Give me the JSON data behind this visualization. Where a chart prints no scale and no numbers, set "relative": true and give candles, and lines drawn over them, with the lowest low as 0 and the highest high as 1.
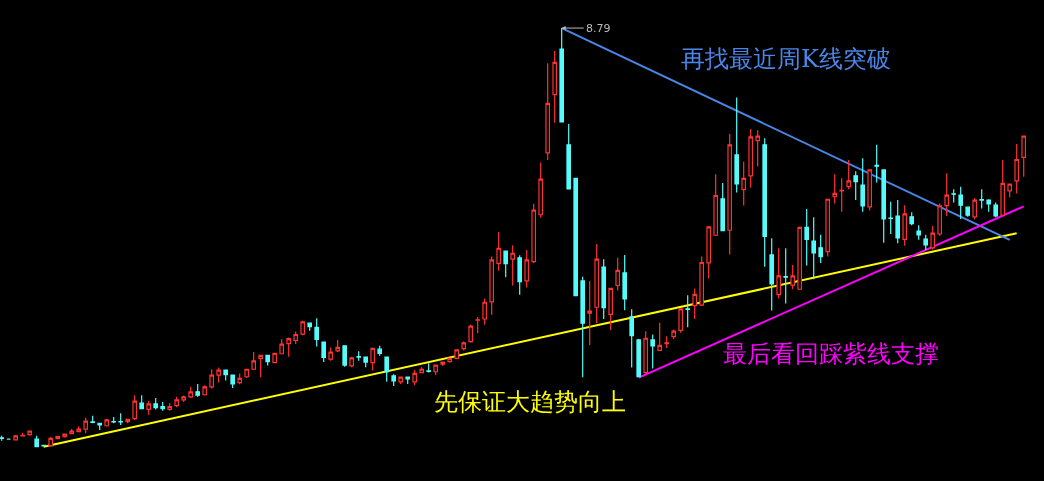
{
  "chart_data": {
    "type": "candlestick",
    "relative": true,
    "legend": false,
    "categories": [
      null,
      null,
      null,
      null,
      null,
      null,
      null,
      null,
      null,
      null,
      null,
      null,
      null,
      null,
      null,
      null,
      null,
      null,
      null,
      null,
      null,
      null,
      null,
      null,
      null,
      null,
      null,
      null,
      null,
      null,
      null,
      null,
      null,
      null,
      null,
      null,
      null,
      null,
      null,
      null,
      null,
      null,
      null,
      null,
      null,
      null,
      null,
      null,
      null,
      null,
      null,
      null,
      null,
      null,
      null,
      null,
      null,
      null,
      null,
      null,
      null,
      null,
      null,
      null,
      null,
      null,
      null,
      null,
      null,
      null,
      null,
      null,
      null,
      null,
      null,
      null,
      null,
      null,
      null,
      null,
      null,
      null,
      null,
      null,
      null,
      null,
      null,
      null,
      null,
      null,
      null,
      null,
      null,
      null,
      null,
      null,
      null,
      null,
      null,
      null,
      null,
      null,
      null,
      null,
      null,
      null,
      null,
      null,
      null,
      null,
      null,
      null,
      null,
      null,
      null,
      null,
      null,
      null,
      null,
      null,
      null,
      null,
      null,
      null,
      null,
      null,
      null,
      null,
      null,
      null,
      null,
      null,
      null,
      null,
      null,
      null,
      null,
      null,
      null,
      null,
      null,
      null,
      null,
      null,
      null,
      null,
      null
    ],
    "colors": [
      "#54fcfc",
      "#54fcfc",
      "#ff3232",
      "#ff3232",
      "#ff3232",
      "#54fcfc",
      "#54fcfc",
      "#ff3232",
      "#ff3232",
      "#ff3232",
      "#ff3232",
      "#ff3232",
      "#ff3232",
      "#54fcfc",
      "#54fcfc",
      "#ff3232",
      "#54fcfc",
      "#54fcfc",
      "#ff3232",
      "#ff3232",
      "#54fcfc",
      "#ff3232",
      "#54fcfc",
      "#54fcfc",
      "#ff3232",
      "#ff3232",
      "#ff3232",
      "#ff3232",
      "#54fcfc",
      "#ff3232",
      "#ff3232",
      "#ff3232",
      "#54fcfc",
      "#54fcfc",
      "#ff3232",
      "#ff3232",
      "#ff3232",
      "#ff3232",
      "#54fcfc",
      "#ff3232",
      "#ff3232",
      "#ff3232",
      "#ff3232",
      "#ff3232",
      "#54fcfc",
      "#54fcfc",
      "#54fcfc",
      "#ff3232",
      "#ff3232",
      "#54fcfc",
      "#ff3232",
      "#54fcfc",
      "#54fcfc",
      "#ff3232",
      "#54fcfc",
      "#54fcfc",
      "#54fcfc",
      "#ff3232",
      "#54fcfc",
      "#ff3232",
      "#ff3232",
      "#54fcfc",
      "#ff3232",
      "#ff3232",
      "#ff3232",
      "#ff3232",
      "#ff3232",
      "#ff3232",
      "#ff3232",
      "#ff3232",
      "#ff3232",
      "#ff3232",
      "#54fcfc",
      "#ff3232",
      "#54fcfc",
      "#ff3232",
      "#ff3232",
      "#ff3232",
      "#ff3232",
      "#ff3232",
      "#54fcfc",
      "#54fcfc",
      "#54fcfc",
      "#54fcfc",
      "#ff3232",
      "#ff3232",
      "#54fcfc",
      "#ff3232",
      "#ff3232",
      "#54fcfc",
      "#54fcfc",
      "#54fcfc",
      "#ff3232",
      "#54fcfc",
      "#ff3232",
      "#ff3232",
      "#ff3232",
      "#ff3232",
      "#54fcfc",
      "#ff3232",
      "#ff3232",
      "#ff3232",
      "#ff3232",
      "#54fcfc",
      "#ff3232",
      "#54fcfc",
      "#ff3232",
      "#ff3232",
      "#ff3232",
      "#54fcfc",
      "#54fcfc",
      "#ff3232",
      "#54fcfc",
      "#ff3232",
      "#ff3232",
      "#54fcfc",
      "#54fcfc",
      "#54fcfc",
      "#ff3232",
      "#ff3232",
      "#ff3232",
      "#ff3232",
      "#54fcfc",
      "#54fcfc",
      "#ff3232",
      "#54fcfc",
      "#54fcfc",
      "#54fcfc",
      "#54fcfc",
      "#ff3232",
      "#54fcfc",
      "#54fcfc",
      "#54fcfc",
      "#ff3232",
      "#ff3232",
      "#ff3232",
      "#54fcfc",
      "#54fcfc",
      "#54fcfc",
      "#ff3232",
      "#54fcfc",
      "#54fcfc",
      "#54fcfc",
      "#ff3232",
      "#ff3232",
      "#ff3232",
      "#ff3232"
    ],
    "ohlc": [
      [
        0.021,
        0.026,
        0.014,
        0.02
      ],
      [
        0.018,
        0.018,
        0.017,
        0.018
      ],
      [
        0.016,
        0.028,
        0.015,
        0.026
      ],
      [
        0.026,
        0.033,
        0.025,
        0.027
      ],
      [
        0.029,
        0.038,
        0.026,
        0.037
      ],
      [
        0.018,
        0.026,
        0,
        0
      ],
      [
        0.003,
        0.003,
        0,
        0.002
      ],
      [
        0.002,
        0.023,
        0.001,
        0.02
      ],
      [
        0.019,
        0.024,
        0.018,
        0.024
      ],
      [
        0.024,
        0.031,
        0.022,
        0.03
      ],
      [
        0.031,
        0.042,
        0.03,
        0.037
      ],
      [
        0.036,
        0.049,
        0.035,
        0.042
      ],
      [
        0.042,
        0.069,
        0.032,
        0.061
      ],
      [
        0.059,
        0.074,
        0.056,
        0.058
      ],
      [
        0.056,
        0.057,
        0.04,
        0.052
      ],
      [
        0.05,
        0.066,
        0.048,
        0.064
      ],
      [
        0.06,
        0.071,
        0.056,
        0.059
      ],
      [
        0.06,
        0.08,
        0.052,
        0.059
      ],
      [
        0.06,
        0.066,
        0.056,
        0.065
      ],
      [
        0.067,
        0.123,
        0.064,
        0.109
      ],
      [
        0.104,
        0.123,
        0.09,
        0.091
      ],
      [
        0.089,
        0.109,
        0.076,
        0.102
      ],
      [
        0.102,
        0.116,
        0.089,
        0.093
      ],
      [
        0.096,
        0.107,
        0.086,
        0.091
      ],
      [
        0.089,
        0.104,
        0.086,
        0.096
      ],
      [
        0.098,
        0.119,
        0.094,
        0.112
      ],
      [
        0.112,
        0.122,
        0.107,
        0.119
      ],
      [
        0.119,
        0.143,
        0.116,
        0.131
      ],
      [
        0.131,
        0.15,
        0.119,
        0.123
      ],
      [
        0.124,
        0.147,
        0.122,
        0.143
      ],
      [
        0.143,
        0.185,
        0.139,
        0.171
      ],
      [
        0.171,
        0.189,
        0.153,
        0.183
      ],
      [
        0.183,
        0.184,
        0.158,
        0.172
      ],
      [
        0.171,
        0.172,
        0.14,
        0.15
      ],
      [
        0.153,
        0.175,
        0.149,
        0.163
      ],
      [
        0.167,
        0.186,
        0.164,
        0.185
      ],
      [
        0.185,
        0.226,
        0.183,
        0.205
      ],
      [
        0.211,
        0.219,
        0.166,
        0.218
      ],
      [
        0.218,
        0.219,
        0.194,
        0.203
      ],
      [
        0.201,
        0.224,
        0.199,
        0.223
      ],
      [
        0.222,
        0.257,
        0.221,
        0.245
      ],
      [
        0.246,
        0.261,
        0.215,
        0.258
      ],
      [
        0.254,
        0.275,
        0.245,
        0.268
      ],
      [
        0.269,
        0.301,
        0.266,
        0.298
      ],
      [
        0.295,
        0.296,
        0.277,
        0.287
      ],
      [
        0.285,
        0.307,
        0.239,
        0.256
      ],
      [
        0.25,
        0.251,
        0.202,
        0.213
      ],
      [
        0.209,
        0.237,
        0.205,
        0.226
      ],
      [
        0.229,
        0.255,
        0.226,
        0.237
      ],
      [
        0.241,
        0.242,
        0.191,
        0.195
      ],
      [
        0.193,
        0.215,
        0.19,
        0.212
      ],
      [
        0.215,
        0.228,
        0.205,
        0.214
      ],
      [
        0.214,
        0.215,
        0.19,
        0.202
      ],
      [
        0.201,
        0.236,
        0.182,
        0.235
      ],
      [
        0.233,
        0.241,
        0.217,
        0.223
      ],
      [
        0.214,
        0.215,
        0.155,
        0.179
      ],
      [
        0.169,
        0.173,
        0.145,
        0.157
      ],
      [
        0.155,
        0.167,
        0.15,
        0.166
      ],
      [
        0.166,
        0.167,
        0.15,
        0.162
      ],
      [
        0.155,
        0.183,
        0.147,
        0.175
      ],
      [
        0.177,
        0.19,
        0.176,
        0.185
      ],
      [
        0.181,
        0.199,
        0.177,
        0.18
      ],
      [
        0.179,
        0.196,
        0.171,
        0.195
      ],
      [
        0.197,
        0.203,
        0.193,
        0.202
      ],
      [
        0.203,
        0.212,
        0.201,
        0.211
      ],
      [
        0.211,
        0.232,
        0.209,
        0.231
      ],
      [
        0.234,
        0.251,
        0.23,
        0.248
      ],
      [
        0.251,
        0.291,
        0.248,
        0.288
      ],
      [
        0.302,
        0.31,
        0.271,
        0.303
      ],
      [
        0.305,
        0.354,
        0.291,
        0.345
      ],
      [
        0.346,
        0.454,
        0.315,
        0.446
      ],
      [
        0.438,
        0.513,
        0.42,
        0.474
      ],
      [
        0.467,
        0.468,
        0.405,
        0.437
      ],
      [
        0.448,
        0.481,
        0.385,
        0.462
      ],
      [
        0.451,
        0.457,
        0.363,
        0.394
      ],
      [
        0.396,
        0.47,
        0.38,
        0.446
      ],
      [
        0.442,
        0.58,
        0.439,
        0.565
      ],
      [
        0.554,
        0.679,
        0.547,
        0.639
      ],
      [
        0.702,
        0.916,
        0.685,
        0.82
      ],
      [
        0.841,
        0.945,
        0.774,
        0.918
      ],
      [
        0.95,
        1,
        0.776,
        0.776
      ],
      [
        0.721,
        0.771,
        0.616,
        0.616
      ],
      [
        0.641,
        0.642,
        0.36,
        0.361
      ],
      [
        0.396,
        0.406,
        0.166,
        0.295
      ],
      [
        0.319,
        0.396,
        0.243,
        0.324
      ],
      [
        0.333,
        0.484,
        0.295,
        0.448
      ],
      [
        0.429,
        0.448,
        0.305,
        0.332
      ],
      [
        0.316,
        0.379,
        0.279,
        0.378
      ],
      [
        0.385,
        0.451,
        0.373,
        0.421
      ],
      [
        0.415,
        0.458,
        0.326,
        0.353
      ],
      [
        0.31,
        0.328,
        0.189,
        0.265
      ],
      [
        0.255,
        0.257,
        0.166,
        0.167
      ],
      [
        0.177,
        0.276,
        0.174,
        0.259
      ],
      [
        0.255,
        0.268,
        0.187,
        0.241
      ],
      [
        0.23,
        0.296,
        0.229,
        0.242
      ],
      [
        0.246,
        0.264,
        0.236,
        0.248
      ],
      [
        0.263,
        0.28,
        0.257,
        0.276
      ],
      [
        0.278,
        0.33,
        0.272,
        0.329
      ],
      [
        0.329,
        0.362,
        0.285,
        0.328
      ],
      [
        0.337,
        0.378,
        0.305,
        0.364
      ],
      [
        0.338,
        0.454,
        0.336,
        0.44
      ],
      [
        0.439,
        0.527,
        0.402,
        0.525
      ],
      [
        0.505,
        0.651,
        0.503,
        0.6
      ],
      [
        0.592,
        0.63,
        0.516,
        0.516
      ],
      [
        0.517,
        0.747,
        0.459,
        0.721
      ],
      [
        0.697,
        0.834,
        0.607,
        0.628
      ],
      [
        0.614,
        0.681,
        0.576,
        0.641
      ],
      [
        0.647,
        0.759,
        0.619,
        0.74
      ],
      [
        0.731,
        0.756,
        0.669,
        0.742
      ],
      [
        0.721,
        0.737,
        0.43,
        0.502
      ],
      [
        0.458,
        0.498,
        0.325,
        0.389
      ],
      [
        0.363,
        0.474,
        0.354,
        0.408
      ],
      [
        0.406,
        0.474,
        0.342,
        0.405
      ],
      [
        0.386,
        0.434,
        0.376,
        0.408
      ],
      [
        0.376,
        0.525,
        0.375,
        0.524
      ],
      [
        0.524,
        0.568,
        0.433,
        0.495
      ],
      [
        0.491,
        0.548,
        0.4,
        0.463
      ],
      [
        0.475,
        0.506,
        0.439,
        0.454
      ],
      [
        0.466,
        0.592,
        0.454,
        0.591
      ],
      [
        0.597,
        0.651,
        0.581,
        0.605
      ],
      [
        0.611,
        0.641,
        0.561,
        0.612
      ],
      [
        0.621,
        0.685,
        0.615,
        0.635
      ],
      [
        0.647,
        0.658,
        0.589,
        0.633
      ],
      [
        0.625,
        0.689,
        0.561,
        0.575
      ],
      [
        0.573,
        0.662,
        0.564,
        0.661
      ],
      [
        0.672,
        0.721,
        0.631,
        0.67
      ],
      [
        0.661,
        0.662,
        0.487,
        0.544
      ],
      [
        0.546,
        0.585,
        0.508,
        0.545
      ],
      [
        0.551,
        0.589,
        0.486,
        0.499
      ],
      [
        0.495,
        0.577,
        0.48,
        0.556
      ],
      [
        0.549,
        0.56,
        0.529,
        0.533
      ],
      [
        0.515,
        0.529,
        0.494,
        0.506
      ],
      [
        0.496,
        0.506,
        0.47,
        0.482
      ],
      [
        0.475,
        0.527,
        0.471,
        0.51
      ],
      [
        0.508,
        0.581,
        0.504,
        0.575
      ],
      [
        0.576,
        0.653,
        0.551,
        0.601
      ],
      [
        0.604,
        0.615,
        0.583,
        0.603
      ],
      [
        0.601,
        0.621,
        0.544,
        0.577
      ],
      [
        0.572,
        0.573,
        0.549,
        0.553
      ],
      [
        0.549,
        0.594,
        0.543,
        0.589
      ],
      [
        0.59,
        0.615,
        0.569,
        0.589
      ],
      [
        0.589,
        0.591,
        0.561,
        0.58
      ],
      [
        0.577,
        0.583,
        0.548,
        0.551
      ],
      [
        0.553,
        0.685,
        0.552,
        0.629
      ],
      [
        0.611,
        0.628,
        0.596,
        0.627
      ],
      [
        0.635,
        0.723,
        0.605,
        0.686
      ],
      [
        0.691,
        0.743,
        0.645,
        0.742
      ]
    ],
    "series": [
      {
        "type": "line",
        "name": "先保证大趋势向上",
        "color": "#ffff00",
        "values": [
          null,
          null,
          null,
          null,
          null,
          null,
          0,
          null,
          null,
          null,
          null,
          null,
          null,
          null,
          null,
          null,
          null,
          null,
          null,
          null,
          null,
          null,
          null,
          null,
          null,
          null,
          null,
          null,
          null,
          null,
          null,
          null,
          null,
          null,
          null,
          null,
          null,
          null,
          null,
          null,
          null,
          null,
          null,
          null,
          null,
          null,
          null,
          null,
          null,
          null,
          null,
          null,
          null,
          null,
          null,
          null,
          null,
          null,
          null,
          null,
          null,
          null,
          null,
          null,
          null,
          null,
          null,
          null,
          null,
          null,
          null,
          null,
          null,
          null,
          null,
          null,
          null,
          null,
          null,
          null,
          null,
          null,
          null,
          null,
          null,
          null,
          null,
          null,
          null,
          null,
          null,
          null,
          null,
          null,
          null,
          null,
          null,
          null,
          null,
          null,
          null,
          null,
          null,
          null,
          null,
          null,
          null,
          null,
          null,
          null,
          null,
          null,
          null,
          null,
          null,
          null,
          null,
          null,
          null,
          null,
          null,
          null,
          null,
          null,
          null,
          null,
          null,
          null,
          null,
          null,
          null,
          null,
          null,
          null,
          null,
          null,
          null,
          null,
          null,
          null,
          null,
          null,
          null,
          null,
          null,
          0.51,
          null
        ]
      },
      {
        "type": "line",
        "name": "再找最近周K线突破",
        "color": "#4a86e8",
        "values": [
          null,
          null,
          null,
          null,
          null,
          null,
          null,
          null,
          null,
          null,
          null,
          null,
          null,
          null,
          null,
          null,
          null,
          null,
          null,
          null,
          null,
          null,
          null,
          null,
          null,
          null,
          null,
          null,
          null,
          null,
          null,
          null,
          null,
          null,
          null,
          null,
          null,
          null,
          null,
          null,
          null,
          null,
          null,
          null,
          null,
          null,
          null,
          null,
          null,
          null,
          null,
          null,
          null,
          null,
          null,
          null,
          null,
          null,
          null,
          null,
          null,
          null,
          null,
          null,
          null,
          null,
          null,
          null,
          null,
          null,
          null,
          null,
          null,
          null,
          null,
          null,
          null,
          null,
          null,
          null,
          1,
          null,
          null,
          null,
          null,
          null,
          null,
          null,
          null,
          null,
          null,
          null,
          null,
          null,
          null,
          null,
          null,
          null,
          null,
          null,
          null,
          null,
          null,
          null,
          null,
          null,
          null,
          null,
          null,
          null,
          null,
          null,
          null,
          null,
          null,
          null,
          null,
          null,
          null,
          null,
          null,
          null,
          null,
          null,
          null,
          null,
          null,
          null,
          null,
          null,
          null,
          null,
          null,
          null,
          null,
          null,
          null,
          null,
          null,
          null,
          null,
          null,
          null,
          null,
          0.494,
          null,
          null
        ]
      },
      {
        "type": "line",
        "name": "最后看回踩紫线支撑",
        "color": "#ff00ff",
        "values": [
          null,
          null,
          null,
          null,
          null,
          null,
          null,
          null,
          null,
          null,
          null,
          null,
          null,
          null,
          null,
          null,
          null,
          null,
          null,
          null,
          null,
          null,
          null,
          null,
          null,
          null,
          null,
          null,
          null,
          null,
          null,
          null,
          null,
          null,
          null,
          null,
          null,
          null,
          null,
          null,
          null,
          null,
          null,
          null,
          null,
          null,
          null,
          null,
          null,
          null,
          null,
          null,
          null,
          null,
          null,
          null,
          null,
          null,
          null,
          null,
          null,
          null,
          null,
          null,
          null,
          null,
          null,
          null,
          null,
          null,
          null,
          null,
          null,
          null,
          null,
          null,
          null,
          null,
          null,
          null,
          null,
          null,
          null,
          null,
          null,
          null,
          null,
          null,
          null,
          null,
          null,
          0.165,
          null,
          null,
          null,
          null,
          null,
          null,
          null,
          null,
          null,
          null,
          null,
          null,
          null,
          null,
          null,
          null,
          null,
          null,
          null,
          null,
          null,
          null,
          null,
          null,
          null,
          null,
          null,
          null,
          null,
          null,
          null,
          null,
          null,
          null,
          null,
          null,
          null,
          null,
          null,
          null,
          null,
          null,
          null,
          null,
          null,
          null,
          null,
          null,
          null,
          null,
          null,
          null,
          null,
          null,
          0.574
        ]
      }
    ],
    "annotations": [
      "8.79"
    ]
  }
}
